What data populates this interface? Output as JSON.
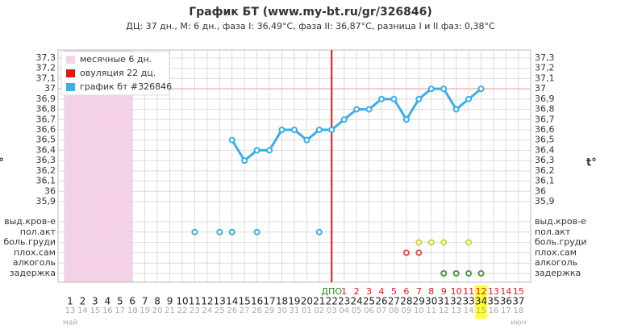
{
  "chart_data": {
    "type": "line",
    "title": "График БТ (www.my-bt.ru/gr/326846)",
    "subtitle": "ДЦ: 37 дн., М: 6 дн., фаза I: 36,49°C, фаза II: 36,87°C, разница I и II фаз: 0,38°C",
    "y_axis_label": "t°",
    "categories": [
      "1",
      "2",
      "3",
      "4",
      "5",
      "6",
      "7",
      "8",
      "9",
      "10",
      "11",
      "12",
      "13",
      "14",
      "15",
      "16",
      "17",
      "18",
      "19",
      "20",
      "21",
      "22",
      "23",
      "24",
      "25",
      "26",
      "27",
      "28",
      "29",
      "30",
      "31",
      "32",
      "33",
      "34",
      "35",
      "36",
      "37"
    ],
    "dpo_labels": [
      null,
      null,
      null,
      null,
      null,
      null,
      null,
      null,
      null,
      null,
      null,
      null,
      null,
      null,
      null,
      null,
      null,
      null,
      null,
      null,
      null,
      "ДПО",
      "1",
      "2",
      "3",
      "4",
      "5",
      "6",
      "7",
      "8",
      "9",
      "10",
      "11",
      "12",
      "13",
      "14",
      "15"
    ],
    "dates": [
      "13",
      "14",
      "15",
      "16",
      "17",
      "18",
      "19",
      "20",
      "21",
      "22",
      "23",
      "24",
      "25",
      "26",
      "27",
      "28",
      "29",
      "30",
      "31",
      "01",
      "02",
      "03",
      "04",
      "05",
      "06",
      "07",
      "08",
      "09",
      "10",
      "11",
      "12",
      "13",
      "14",
      "15",
      "16",
      "17",
      "18"
    ],
    "months": [
      "май",
      "июн"
    ],
    "series": [
      {
        "name": "график бт #326846",
        "color": "#3aaee6",
        "values": [
          null,
          null,
          null,
          null,
          null,
          null,
          null,
          null,
          null,
          null,
          null,
          null,
          null,
          36.5,
          36.3,
          36.4,
          36.4,
          36.6,
          36.6,
          36.5,
          36.6,
          36.6,
          36.7,
          36.8,
          36.8,
          36.9,
          36.9,
          36.7,
          36.9,
          37.0,
          37.0,
          36.8,
          36.9,
          37.0,
          null,
          null,
          null
        ]
      }
    ],
    "menses": {
      "name": "месячные 6 дн.",
      "color": "#f7d0ea",
      "days": 6
    },
    "ovulation": {
      "name": "овуляция 22 дц.",
      "color": "#e8141c",
      "day": 22
    },
    "today": 34,
    "reference_line": 37,
    "ylim": [
      35.9,
      37.3
    ],
    "yticks": [
      {
        "value": 37.3,
        "label": "37,3"
      },
      {
        "value": 37.2,
        "label": "37,2"
      },
      {
        "value": 37.1,
        "label": "37,1"
      },
      {
        "value": 37,
        "label": "37"
      },
      {
        "value": 36.9,
        "label": "36,9"
      },
      {
        "value": 36.8,
        "label": "36,8"
      },
      {
        "value": 36.7,
        "label": "36,7"
      },
      {
        "value": 36.6,
        "label": "36,6"
      },
      {
        "value": 36.5,
        "label": "36,5"
      },
      {
        "value": 36.4,
        "label": "36,4"
      },
      {
        "value": 36.3,
        "label": "36,3"
      },
      {
        "value": 36.2,
        "label": "36,2"
      },
      {
        "value": 36.1,
        "label": "36,1"
      },
      {
        "value": 36,
        "label": "36"
      },
      {
        "value": 35.9,
        "label": "35,9"
      }
    ],
    "symptoms": [
      {
        "name": "выд.кров-е",
        "color": "#e8141c",
        "days": []
      },
      {
        "name": "пол.акт",
        "color": "#3aaee6",
        "days": [
          11,
          13,
          14,
          16,
          21
        ]
      },
      {
        "name": "боль.груди",
        "color": "#c8d83a",
        "days": [
          29,
          30,
          31,
          33
        ]
      },
      {
        "name": "плох.сам",
        "color": "#e05050",
        "days": [
          28,
          29
        ]
      },
      {
        "name": "алкоголь",
        "color": "#888888",
        "days": []
      },
      {
        "name": "задержка",
        "color": "#4a9a3a",
        "days": [
          31,
          32,
          33,
          34
        ]
      }
    ],
    "grid": true
  }
}
